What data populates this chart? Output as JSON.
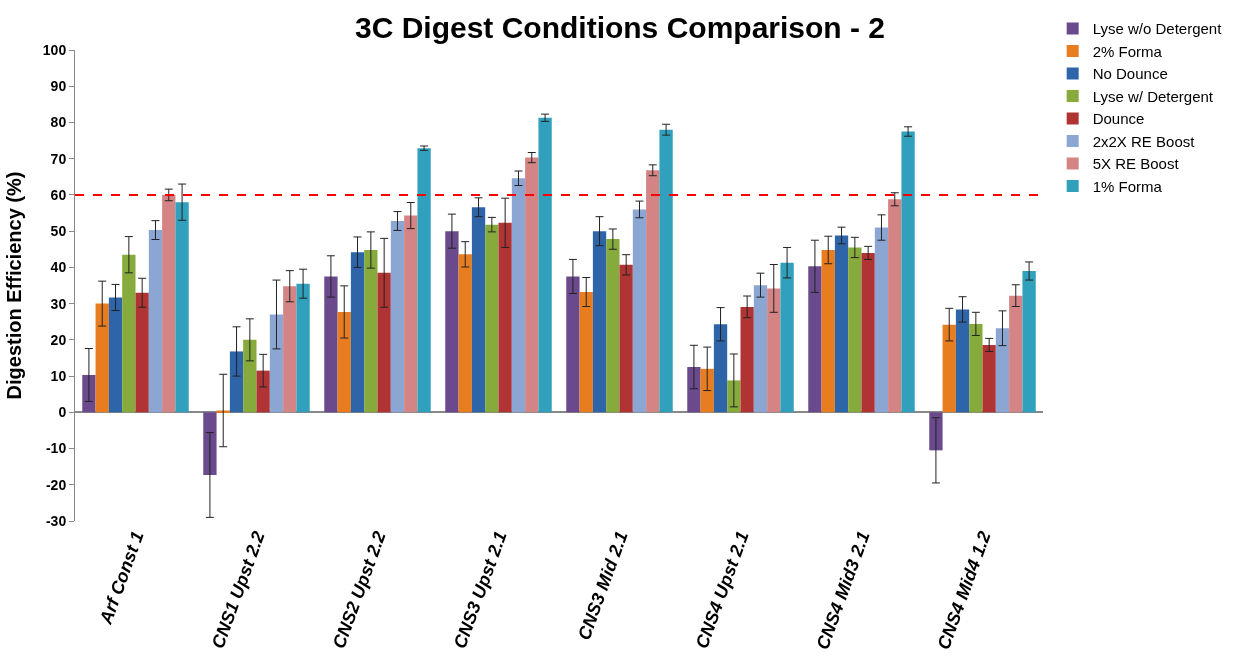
{
  "chart_data": {
    "type": "bar",
    "title": "3C Digest Conditions Comparison - 2",
    "ylabel": "Digestion Efficiency (%)",
    "categories": [
      "Arf Const 1",
      "CNS1 Upst 2.2",
      "CNS2 Upst 2.2",
      "CNS3 Upst 2.1",
      "CNS3 Mid 2.1",
      "CNS4 Upst 2.1",
      "CNS4 Mid3 2.1",
      "CNS4 Mid4 1.2"
    ],
    "series": [
      {
        "name": "Lyse w/o Detergent",
        "color": "#6a4a8c",
        "values": [
          10.3,
          -17.3,
          37.5,
          50,
          37.5,
          12.5,
          40.3,
          -10.5
        ],
        "errors": [
          7.3,
          11.7,
          5.7,
          4.7,
          4.7,
          6,
          7.2,
          9
        ]
      },
      {
        "name": "2% Forma",
        "color": "#e87d20",
        "values": [
          30,
          0.5,
          27.7,
          43.6,
          33.2,
          12,
          44.8,
          24.2
        ],
        "errors": [
          6.2,
          10,
          7.2,
          3.5,
          4,
          6,
          3.8,
          4.5
        ]
      },
      {
        "name": "No Dounce",
        "color": "#2e64a8",
        "values": [
          31.7,
          16.8,
          44.2,
          56.6,
          50,
          24.3,
          48.8,
          28.4
        ],
        "errors": [
          3.6,
          6.8,
          4.2,
          2.6,
          4,
          4.6,
          2.3,
          3.5
        ]
      },
      {
        "name": "Lyse w/ Detergent",
        "color": "#86aa3c",
        "values": [
          43.5,
          20,
          44.8,
          51.8,
          47.8,
          8.8,
          45.5,
          24.4
        ],
        "errors": [
          5,
          5.8,
          5,
          2,
          2.8,
          7.3,
          2.8,
          3.2
        ]
      },
      {
        "name": "Dounce",
        "color": "#b03434",
        "values": [
          33,
          11.5,
          38.5,
          52.3,
          40.7,
          29.1,
          44,
          18.6
        ],
        "errors": [
          4,
          4.5,
          9.5,
          6.8,
          2.8,
          3,
          1.8,
          1.8
        ]
      },
      {
        "name": "2x2X RE Boost",
        "color": "#8ca6d4",
        "values": [
          50.3,
          27,
          52.8,
          64.6,
          56,
          35.1,
          51,
          23.2
        ],
        "errors": [
          2.6,
          9.5,
          2.6,
          2,
          2.3,
          3.3,
          3.5,
          4.8
        ]
      },
      {
        "name": "5X RE Boost",
        "color": "#d48484",
        "values": [
          60,
          34.8,
          54.3,
          70.3,
          66.8,
          34.2,
          58.8,
          32.2
        ],
        "errors": [
          1.6,
          4.3,
          3.6,
          1.4,
          1.5,
          6.6,
          1.8,
          3
        ]
      },
      {
        "name": "1% Forma",
        "color": "#30a0bc",
        "values": [
          58,
          35.5,
          72.9,
          81.3,
          78,
          41.3,
          77.5,
          39
        ],
        "errors": [
          5,
          4,
          0.6,
          1,
          1.5,
          4.2,
          1.3,
          2.5
        ]
      }
    ],
    "ylim": [
      -30,
      100
    ],
    "yticks": [
      -30,
      -20,
      -10,
      0,
      10,
      20,
      30,
      40,
      50,
      60,
      70,
      80,
      90,
      100
    ],
    "ref_lines": [
      {
        "axis": "y",
        "value": 60,
        "color": "#ff0000",
        "line_style": "dashed"
      }
    ],
    "legend": "top right"
  }
}
